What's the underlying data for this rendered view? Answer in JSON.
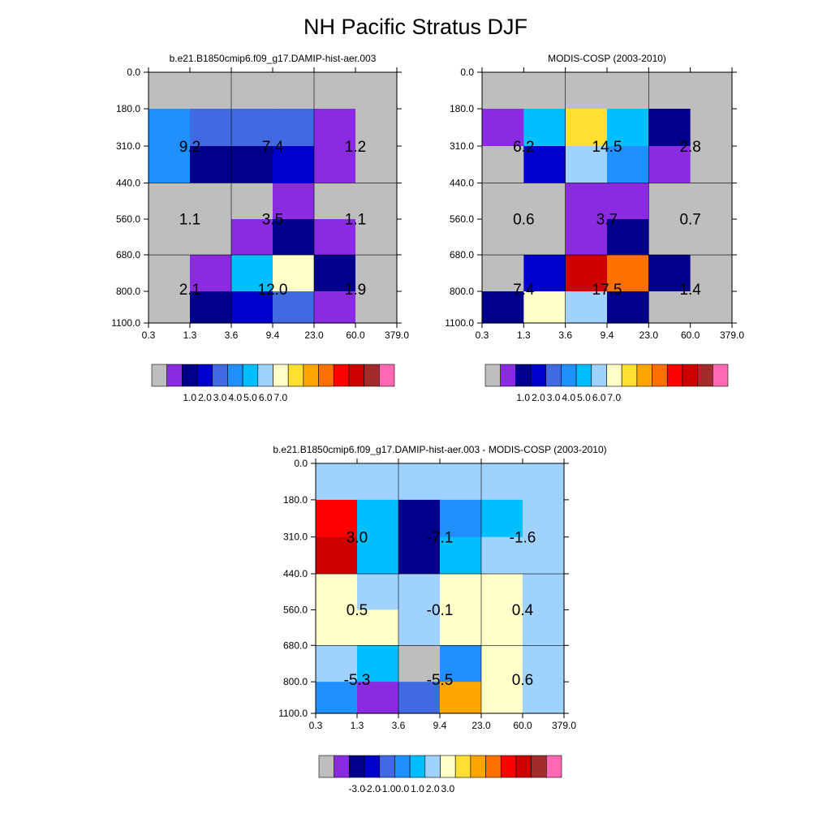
{
  "title": "NH Pacific Stratus DJF",
  "colors": {
    "missing": "#bebebe",
    "palette": [
      "#bebebe",
      "#8a2be2",
      "#00008b",
      "#0000cd",
      "#4169e1",
      "#1e90ff",
      "#00bfff",
      "#a0d2ff",
      "#ffffc8",
      "#ffe032",
      "#ffa500",
      "#ff7000",
      "#ff0000",
      "#cd0000",
      "#a52a2a",
      "#ff69b4"
    ]
  },
  "chart_data": [
    {
      "type": "heatmap",
      "title": "b.e21.B1850cmip6.f09_g17.DAMIP-hist-aer.003",
      "xlabel": "",
      "ylabel": "",
      "x_ticks": [
        "0.3",
        "1.3",
        "3.6",
        "9.4",
        "23.0",
        "60.0",
        "379.0"
      ],
      "y_ticks": [
        "0.0",
        "180.0",
        "310.0",
        "440.0",
        "560.0",
        "680.0",
        "800.0",
        "1100.0"
      ],
      "grid": true,
      "cell_color_index": [
        [
          0,
          0,
          0,
          0,
          0,
          0
        ],
        [
          5,
          4,
          4,
          4,
          1,
          0
        ],
        [
          5,
          2,
          2,
          3,
          1,
          0
        ],
        [
          0,
          0,
          0,
          1,
          0,
          0
        ],
        [
          0,
          0,
          1,
          2,
          1,
          0
        ],
        [
          0,
          1,
          6,
          8,
          2,
          0
        ],
        [
          0,
          2,
          3,
          4,
          1,
          0
        ]
      ],
      "box_values": [
        [
          9.2,
          7.4,
          1.2
        ],
        [
          1.1,
          3.5,
          1.1
        ],
        [
          2.1,
          12.0,
          1.9
        ]
      ],
      "box_labels": [
        [
          "9.2",
          "7.4",
          "1.2"
        ],
        [
          "1.1",
          "3.5",
          "1.1"
        ],
        [
          "2.1",
          "12.0",
          "1.9"
        ]
      ],
      "colorbar_labels": [
        "1.0",
        "2.0",
        "3.0",
        "4.0",
        "5.0",
        "6.0",
        "7.0"
      ]
    },
    {
      "type": "heatmap",
      "title": "MODIS-COSP (2003-2010)",
      "xlabel": "",
      "ylabel": "",
      "x_ticks": [
        "0.3",
        "1.3",
        "3.6",
        "9.4",
        "23.0",
        "60.0",
        "379.0"
      ],
      "y_ticks": [
        "0.0",
        "180.0",
        "310.0",
        "440.0",
        "560.0",
        "680.0",
        "800.0",
        "1100.0"
      ],
      "grid": true,
      "cell_color_index": [
        [
          0,
          0,
          0,
          0,
          0,
          0
        ],
        [
          1,
          6,
          9,
          6,
          2,
          0
        ],
        [
          0,
          3,
          7,
          5,
          1,
          0
        ],
        [
          0,
          0,
          1,
          1,
          0,
          0
        ],
        [
          0,
          0,
          1,
          2,
          0,
          0
        ],
        [
          0,
          3,
          13,
          11,
          2,
          0
        ],
        [
          2,
          8,
          7,
          2,
          0,
          0
        ]
      ],
      "box_values": [
        [
          6.2,
          14.5,
          2.8
        ],
        [
          0.6,
          3.7,
          0.7
        ],
        [
          7.4,
          17.5,
          1.4
        ]
      ],
      "box_labels": [
        [
          "6.2",
          "14.5",
          "2.8"
        ],
        [
          "0.6",
          "3.7",
          "0.7"
        ],
        [
          "7.4",
          "17.5",
          "1.4"
        ]
      ],
      "colorbar_labels": [
        "1.0",
        "2.0",
        "3.0",
        "4.0",
        "5.0",
        "6.0",
        "7.0"
      ]
    },
    {
      "type": "heatmap",
      "title": "b.e21.B1850cmip6.f09_g17.DAMIP-hist-aer.003 - MODIS-COSP (2003-2010)",
      "xlabel": "",
      "ylabel": "",
      "x_ticks": [
        "0.3",
        "1.3",
        "3.6",
        "9.4",
        "23.0",
        "60.0",
        "379.0"
      ],
      "y_ticks": [
        "0.0",
        "180.0",
        "310.0",
        "440.0",
        "560.0",
        "680.0",
        "800.0",
        "1100.0"
      ],
      "grid": true,
      "cell_color_index": [
        [
          7,
          7,
          7,
          7,
          7,
          7
        ],
        [
          12,
          6,
          2,
          5,
          6,
          7
        ],
        [
          13,
          6,
          2,
          6,
          7,
          7
        ],
        [
          8,
          7,
          7,
          8,
          8,
          7
        ],
        [
          8,
          8,
          7,
          8,
          8,
          7
        ],
        [
          7,
          6,
          0,
          5,
          8,
          7
        ],
        [
          5,
          1,
          4,
          10,
          8,
          7
        ]
      ],
      "box_values": [
        [
          3.0,
          -7.1,
          -1.6
        ],
        [
          0.5,
          -0.1,
          0.4
        ],
        [
          -5.3,
          -5.5,
          0.6
        ]
      ],
      "box_labels": [
        [
          "3.0",
          "-7.1",
          "-1.6"
        ],
        [
          "0.5",
          "-0.1",
          "0.4"
        ],
        [
          "-5.3",
          "-5.5",
          "0.6"
        ]
      ],
      "colorbar_labels": [
        "-3.0",
        "-2.0",
        "-1.0",
        "0.0",
        "1.0",
        "2.0",
        "3.0"
      ]
    }
  ]
}
